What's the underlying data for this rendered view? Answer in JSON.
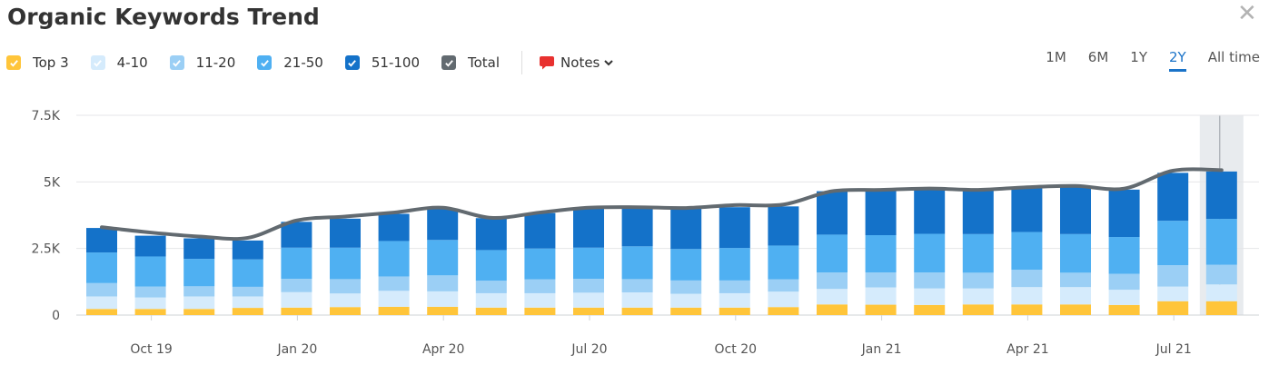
{
  "header": {
    "title": "Organic Keywords Trend"
  },
  "legend": [
    {
      "label": "Top 3",
      "color": "#ffc53a"
    },
    {
      "label": "4-10",
      "color": "#d5ebfc"
    },
    {
      "label": "11-20",
      "color": "#9bcff5"
    },
    {
      "label": "21-50",
      "color": "#4fb0f2"
    },
    {
      "label": "51-100",
      "color": "#1472c9"
    },
    {
      "label": "Total",
      "color": "#626a70"
    }
  ],
  "notes": {
    "label": "Notes"
  },
  "ranges": [
    {
      "label": "1M",
      "active": false
    },
    {
      "label": "6M",
      "active": false
    },
    {
      "label": "1Y",
      "active": false
    },
    {
      "label": "2Y",
      "active": true
    },
    {
      "label": "All time",
      "active": false
    }
  ],
  "chart_data": {
    "type": "bar",
    "stacked": true,
    "yticks": [
      "0",
      "2.5K",
      "5K",
      "7.5K"
    ],
    "ylim": [
      0,
      7500
    ],
    "xticks": [
      {
        "label": "Oct 19",
        "index": 1
      },
      {
        "label": "Jan 20",
        "index": 4
      },
      {
        "label": "Apr 20",
        "index": 7
      },
      {
        "label": "Jul 20",
        "index": 10
      },
      {
        "label": "Oct 20",
        "index": 13
      },
      {
        "label": "Jan 21",
        "index": 16
      },
      {
        "label": "Apr 21",
        "index": 19
      },
      {
        "label": "Jul 21",
        "index": 22
      }
    ],
    "highlight_index": 23,
    "series": [
      {
        "name": "Top 3",
        "color": "#ffc53a",
        "values": [
          230,
          230,
          230,
          270,
          280,
          300,
          310,
          310,
          280,
          280,
          280,
          280,
          280,
          280,
          300,
          400,
          390,
          380,
          400,
          400,
          400,
          380,
          520,
          520
        ]
      },
      {
        "name": "4-10",
        "color": "#d5ebfc",
        "values": [
          470,
          430,
          470,
          430,
          580,
          510,
          600,
          580,
          540,
          540,
          560,
          570,
          520,
          540,
          580,
          580,
          650,
          620,
          600,
          650,
          650,
          570,
          550,
          630
        ]
      },
      {
        "name": "11-20",
        "color": "#9bcff5",
        "values": [
          500,
          410,
          380,
          360,
          500,
          540,
          540,
          600,
          470,
          520,
          520,
          500,
          500,
          480,
          460,
          620,
          560,
          600,
          590,
          650,
          540,
          600,
          800,
          740
        ]
      },
      {
        "name": "21-50",
        "color": "#4fb0f2",
        "values": [
          1150,
          1130,
          1030,
          1030,
          1170,
          1180,
          1330,
          1330,
          1150,
          1160,
          1170,
          1230,
          1180,
          1220,
          1270,
          1420,
          1400,
          1450,
          1450,
          1420,
          1450,
          1380,
          1670,
          1720
        ]
      },
      {
        "name": "51-100",
        "color": "#1472c9",
        "values": [
          920,
          780,
          770,
          710,
          970,
          1090,
          1020,
          1180,
          1200,
          1330,
          1470,
          1420,
          1520,
          1530,
          1470,
          1630,
          1660,
          1680,
          1630,
          1660,
          1780,
          1780,
          1800,
          1780
        ]
      }
    ],
    "total": {
      "name": "Total",
      "color": "#626a70",
      "values": [
        3300,
        3100,
        2950,
        2900,
        3550,
        3700,
        3850,
        4030,
        3650,
        3850,
        4030,
        4050,
        4020,
        4130,
        4150,
        4650,
        4700,
        4750,
        4700,
        4800,
        4850,
        4750,
        5420,
        5440
      ]
    }
  }
}
